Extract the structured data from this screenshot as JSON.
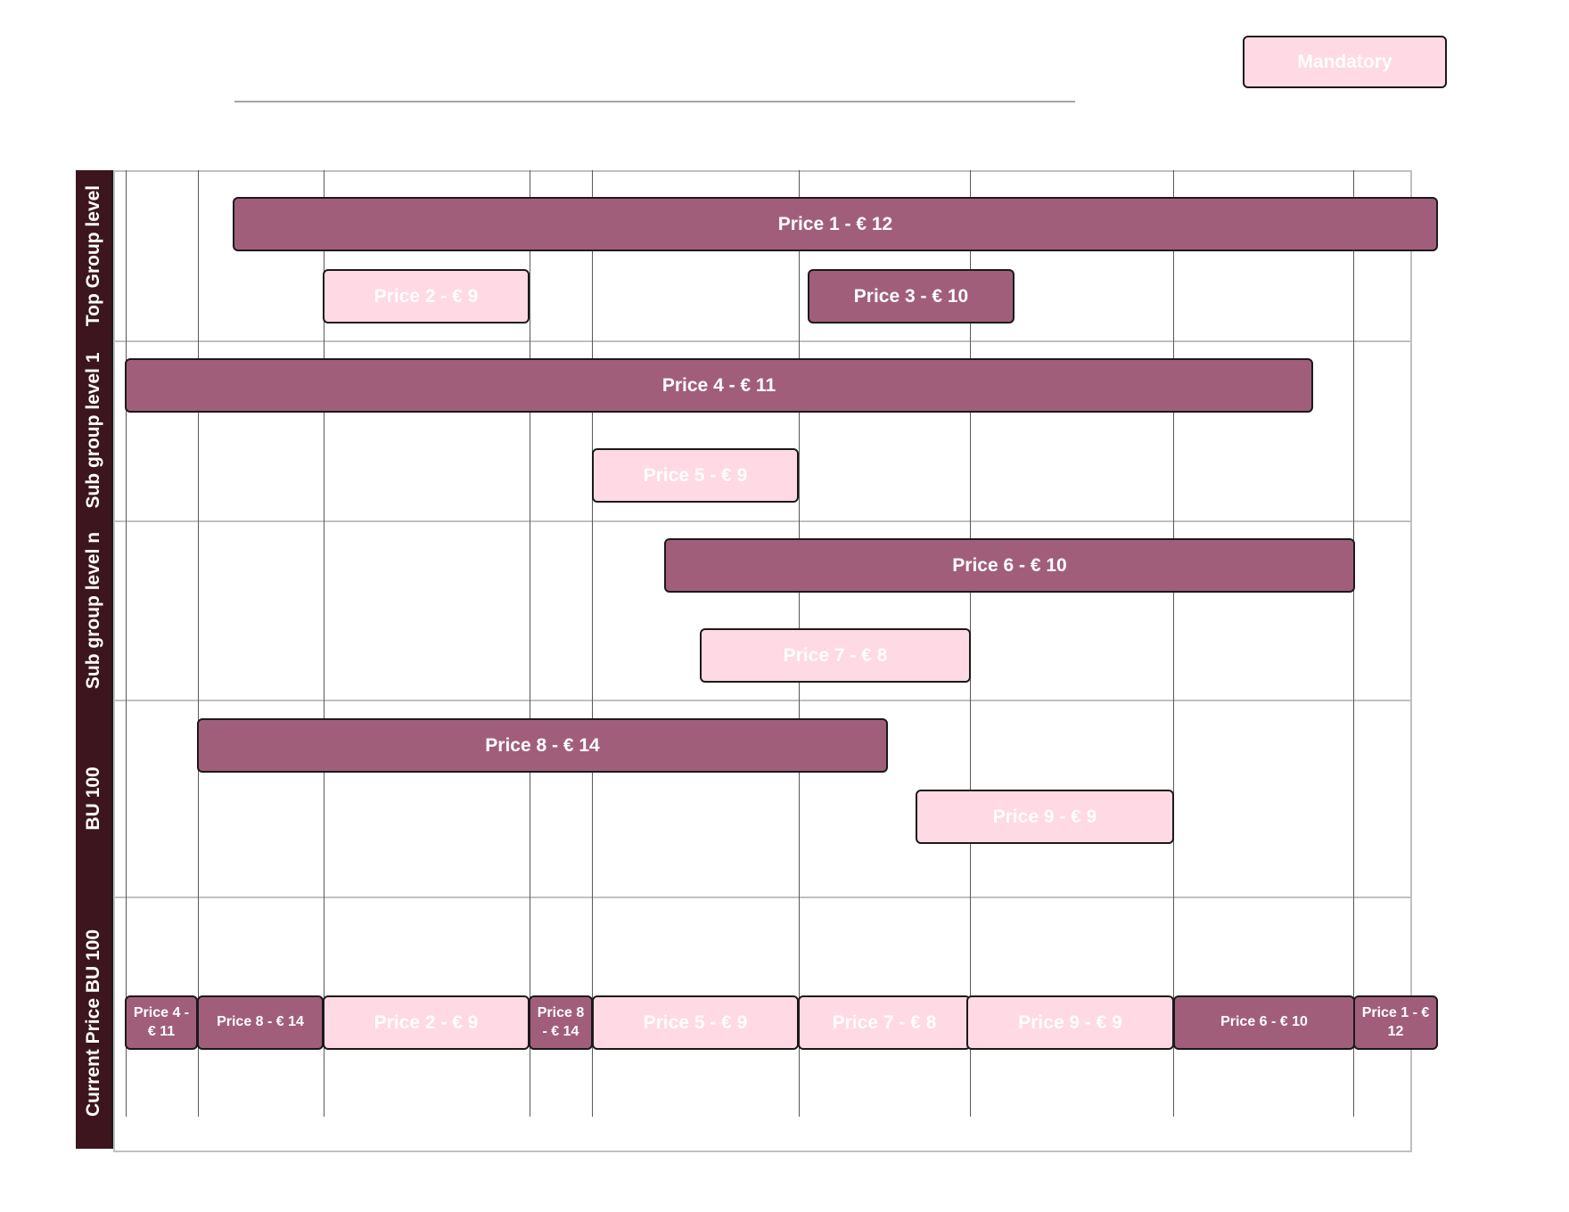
{
  "legend": {
    "label": "Mandatory",
    "color": "#ffd9e4"
  },
  "colors": {
    "required_fill": "#a15e7b",
    "mandatory_fill": "#ffd9e4",
    "lane_label_fill": "#3d151e",
    "grid_line": "#c0c0c0",
    "column_line": "#595959"
  },
  "lanes": [
    {
      "label": "Top Group level"
    },
    {
      "label": "Sub group level 1"
    },
    {
      "label": "Sub group level n"
    },
    {
      "label": "BU 100"
    },
    {
      "label": "Current Price BU 100"
    }
  ],
  "prices": [
    {
      "label": "Price 1 - € 12",
      "lane": "Top Group level",
      "type": "required"
    },
    {
      "label": "Price 2 - € 9",
      "lane": "Top Group level",
      "type": "mandatory"
    },
    {
      "label": "Price 3 - € 10",
      "lane": "Top Group level",
      "type": "required"
    },
    {
      "label": "Price 4 - € 11",
      "lane": "Sub group level 1",
      "type": "required"
    },
    {
      "label": "Price 5 - € 9",
      "lane": "Sub group level 1",
      "type": "mandatory"
    },
    {
      "label": "Price 6 - € 10",
      "lane": "Sub group level n",
      "type": "required"
    },
    {
      "label": "Price 7 - € 8",
      "lane": "Sub group level n",
      "type": "mandatory"
    },
    {
      "label": "Price 8 - € 14",
      "lane": "BU 100",
      "type": "required"
    },
    {
      "label": "Price 9 - € 9",
      "lane": "BU 100",
      "type": "mandatory"
    }
  ],
  "current_prices": [
    {
      "label": "Price 4 - € 11",
      "type": "required"
    },
    {
      "label": "Price 8 - € 14",
      "type": "required"
    },
    {
      "label": "Price 2 - € 9",
      "type": "mandatory"
    },
    {
      "label": "Price 8 - € 14",
      "type": "required"
    },
    {
      "label": "Price 5 - € 9",
      "type": "mandatory"
    },
    {
      "label": "Price 7 - € 8",
      "type": "mandatory"
    },
    {
      "label": "Price 9 - € 9",
      "type": "mandatory"
    },
    {
      "label": "Price 6 - € 10",
      "type": "required"
    },
    {
      "label": "Price 1 - € 12",
      "type": "required"
    }
  ]
}
